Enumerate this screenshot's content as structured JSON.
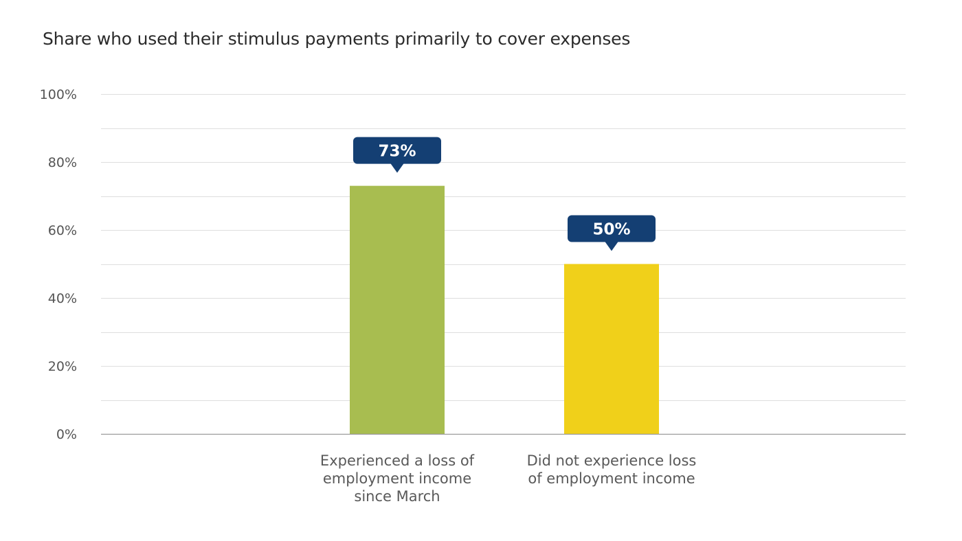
{
  "chart_data": {
    "type": "bar",
    "title": "Share who used their stimulus payments primarily to cover expenses",
    "xlabel": "",
    "ylabel": "",
    "categories": [
      [
        "Experienced a loss of",
        "employment income",
        "since March"
      ],
      [
        "Did not experience loss",
        "of employment income"
      ]
    ],
    "values": [
      73,
      50
    ],
    "data_labels": [
      "73%",
      "50%"
    ],
    "bar_colors": [
      "#a8bd50",
      "#f0d01a"
    ],
    "label_badge_color": "#143f73",
    "ylim": [
      0,
      100
    ],
    "yticks": [
      0,
      20,
      40,
      60,
      80,
      100
    ],
    "ytick_labels": [
      "0%",
      "20%",
      "40%",
      "60%",
      "80%",
      "100%"
    ],
    "grid": true,
    "gridline_color": "#dedede",
    "axis_color": "#9a9a9a",
    "legend": "none"
  }
}
